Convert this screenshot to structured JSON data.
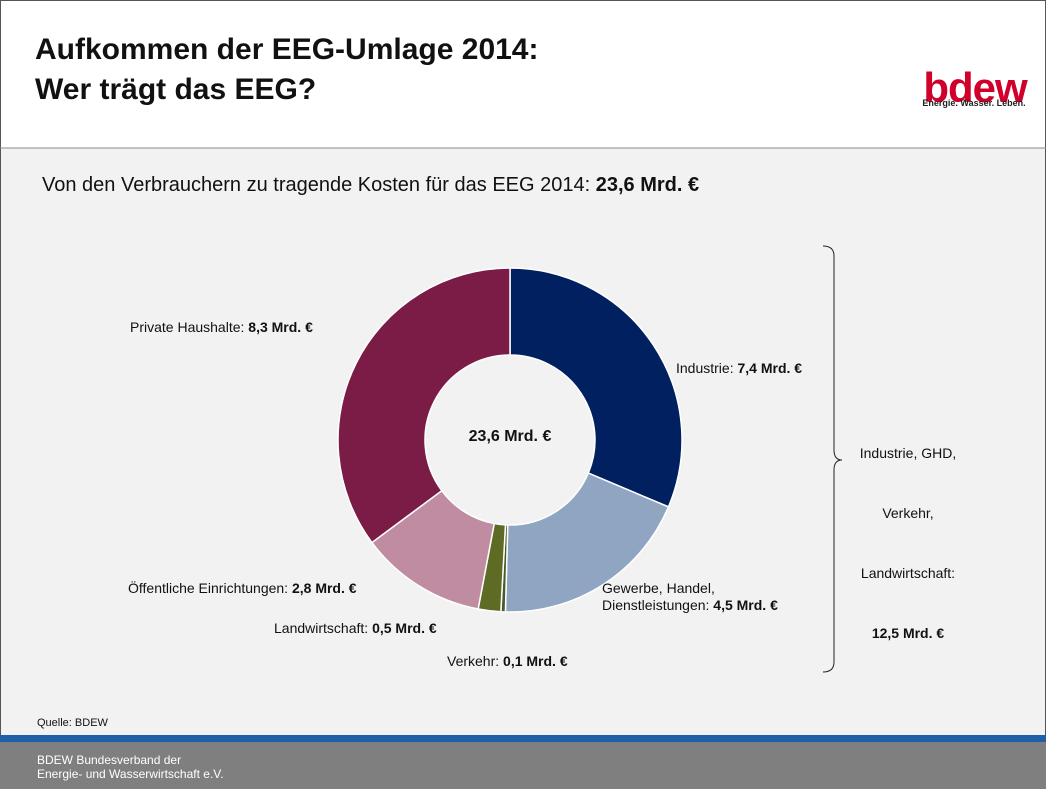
{
  "chart_data": {
    "type": "donut",
    "title": "Aufkommen der EEG-Umlage 2014:\nWer trägt das EEG?",
    "logo": "bdew",
    "logo_tagline": "Energie. Wasser. Leben.",
    "subtitle": "Von den Verbrauchern zu tragende Kosten für das EEG 2014:",
    "subtitle_total": "23,6 Mrd. €",
    "center_label": "23,6 Mrd. €",
    "categories": [
      "Industrie:",
      "Gewerbe, Handel,\nDienstleistungen:",
      "Verkehr:",
      "Landwirtschaft:",
      "Öffentliche Einrichtungen:",
      "Private Haushalte:"
    ],
    "values": [
      7.4,
      4.5,
      0.1,
      0.5,
      2.8,
      8.3
    ],
    "value_labels": [
      "7,4 Mrd. €",
      "4,5 Mrd. €",
      "0,1 Mrd. €",
      "0,5 Mrd. €",
      "2,8 Mrd. €",
      "8,3 Mrd. €"
    ],
    "colors": [
      "#002060",
      "#8fa5c1",
      "#4a5a30",
      "#5e6b24",
      "#c08ca2",
      "#7b1c47"
    ],
    "bracket_lines": [
      "Industrie, GHD,",
      "Verkehr,",
      "Landwirtschaft:"
    ],
    "bracket_total": "12,5 Mrd. €",
    "source": "Quelle: BDEW",
    "footer": "BDEW Bundesverband der\nEnergie- und Wasserwirtschaft e.V."
  }
}
